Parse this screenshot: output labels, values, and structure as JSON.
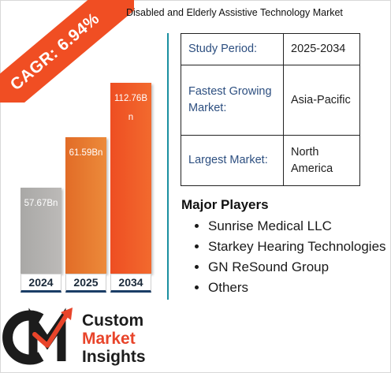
{
  "cagr_label": "CAGR: 6.94%",
  "title": "Disabled and Elderly Assistive Technology Market",
  "bars": [
    {
      "year": "2024",
      "value_label": "57.67Bn",
      "value": 57.67,
      "color": "#b3b1af"
    },
    {
      "year": "2025",
      "value_label": "61.59Bn",
      "value": 61.59,
      "color": "#e87a30"
    },
    {
      "year": "2034",
      "value_label": "112.76Bn",
      "value": 112.76,
      "color": "#f05a28"
    }
  ],
  "info_table": [
    {
      "key": "Study Period:",
      "value": "2025-2034"
    },
    {
      "key": "Fastest Growing Market:",
      "value": "Asia-Pacific"
    },
    {
      "key": "Largest Market:",
      "value": "North America"
    }
  ],
  "major_players": {
    "title": "Major Players",
    "items": [
      "Sunrise Medical LLC",
      "Starkey Hearing Technologies",
      "GN ReSound Group",
      "Others"
    ]
  },
  "logo": {
    "line1": "Custom",
    "line2": "Market",
    "line3": "Insights",
    "brand_colors": {
      "dark": "#1c1c1c",
      "accent": "#e8442a"
    },
    "icon": "cmi-logo-mark"
  },
  "colors": {
    "ribbon": "#f04e23",
    "divider": "#1a8fa0",
    "year_underline": "#1a3d66",
    "table_key": "#2d4f80"
  }
}
